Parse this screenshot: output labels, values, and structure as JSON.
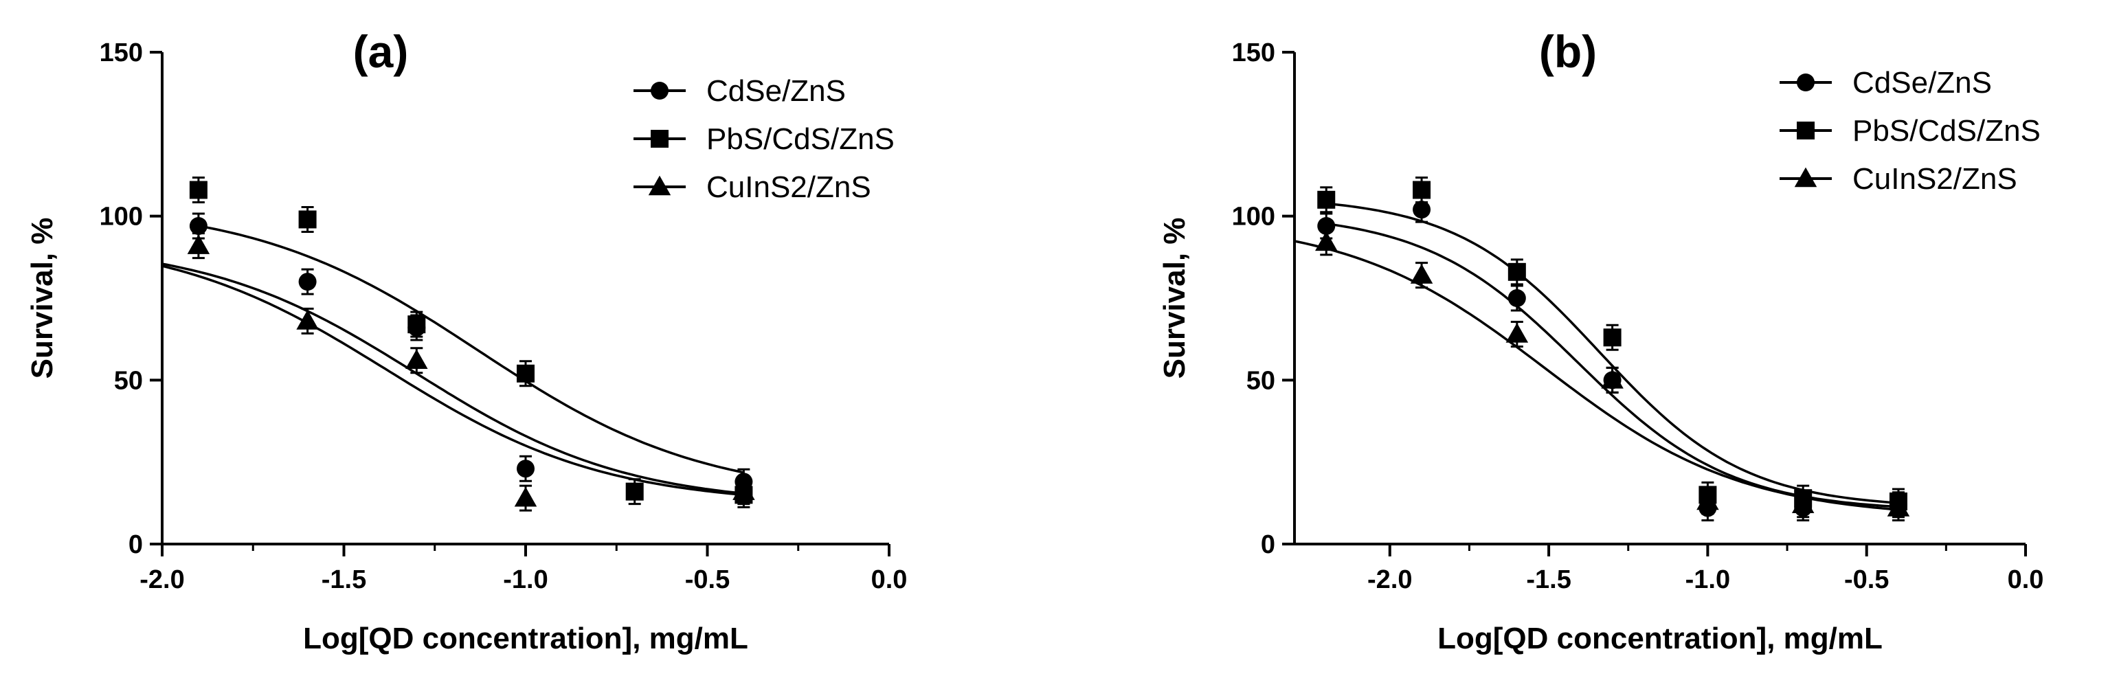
{
  "chart_data": [
    {
      "type": "scatter",
      "title": "(a)",
      "xlabel": "Log[QD concentration], mg/mL",
      "ylabel": "Survival, %",
      "xlim": [
        -2.0,
        0.0
      ],
      "ylim": [
        0,
        150
      ],
      "xticks": [
        "-2.0",
        "-1.5",
        "-1.0",
        "-0.5",
        "0.0"
      ],
      "yticks": [
        "0",
        "50",
        "100",
        "150"
      ],
      "legend_position": "top-right",
      "series": [
        {
          "name": "CdSe/ZnS",
          "marker": "circle",
          "x": [
            -1.9,
            -1.6,
            -1.3,
            -1.0,
            -0.4
          ],
          "y": [
            97,
            80,
            66,
            23,
            19
          ],
          "fit": {
            "top": 92,
            "bottom": 12,
            "logec50": -1.3,
            "hill": 1.5,
            "x_range": [
              -2.0,
              -0.4
            ]
          }
        },
        {
          "name": "PbS/CdS/ZnS",
          "marker": "square",
          "x": [
            -1.9,
            -1.6,
            -1.3,
            -1.0,
            -0.7,
            -0.4
          ],
          "y": [
            108,
            99,
            67,
            52,
            16,
            15
          ],
          "fit": {
            "top": 104,
            "bottom": 14,
            "logec50": -1.13,
            "hill": 1.4,
            "x_range": [
              -1.9,
              -0.4
            ]
          }
        },
        {
          "name": "CuInS2/ZnS",
          "marker": "triangle",
          "x": [
            -1.9,
            -1.6,
            -1.3,
            -1.0,
            -0.4
          ],
          "y": [
            91,
            68,
            56,
            14,
            16
          ],
          "fit": {
            "top": 94,
            "bottom": 12,
            "logec50": -1.38,
            "hill": 1.45,
            "x_range": [
              -2.0,
              -0.4
            ]
          }
        }
      ]
    },
    {
      "type": "scatter",
      "title": "(b)",
      "xlabel": "Log[QD concentration], mg/mL",
      "ylabel": "Survival, %",
      "xlim": [
        -2.3,
        0.0
      ],
      "ylim": [
        0,
        150
      ],
      "xticks": [
        "-2.0",
        "-1.5",
        "-1.0",
        "-0.5",
        "0.0"
      ],
      "yticks": [
        "0",
        "50",
        "100",
        "150"
      ],
      "legend_position": "top-right",
      "series": [
        {
          "name": "CdSe/ZnS",
          "marker": "circle",
          "x": [
            -2.2,
            -1.9,
            -1.6,
            -1.3,
            -1.0,
            -0.7,
            -0.4
          ],
          "y": [
            97,
            102,
            75,
            50,
            11,
            11,
            12
          ],
          "fit": {
            "top": 101,
            "bottom": 10,
            "logec50": -1.41,
            "hill": 1.8,
            "x_range": [
              -2.2,
              -0.4
            ]
          }
        },
        {
          "name": "PbS/CdS/ZnS",
          "marker": "square",
          "x": [
            -2.2,
            -1.9,
            -1.6,
            -1.3,
            -1.0,
            -0.7,
            -0.4
          ],
          "y": [
            105,
            108,
            83,
            63,
            15,
            14,
            13
          ],
          "fit": {
            "top": 106,
            "bottom": 11,
            "logec50": -1.34,
            "hill": 1.9,
            "x_range": [
              -2.2,
              -0.4
            ]
          }
        },
        {
          "name": "CuInS2/ZnS",
          "marker": "triangle",
          "x": [
            -2.2,
            -1.9,
            -1.6,
            -1.3,
            -1.0,
            -0.7,
            -0.4
          ],
          "y": [
            92,
            82,
            64,
            50,
            13,
            12,
            11
          ],
          "fit": {
            "top": 99,
            "bottom": 8,
            "logec50": -1.51,
            "hill": 1.4,
            "x_range": [
              -2.3,
              -0.4
            ]
          }
        }
      ]
    }
  ]
}
